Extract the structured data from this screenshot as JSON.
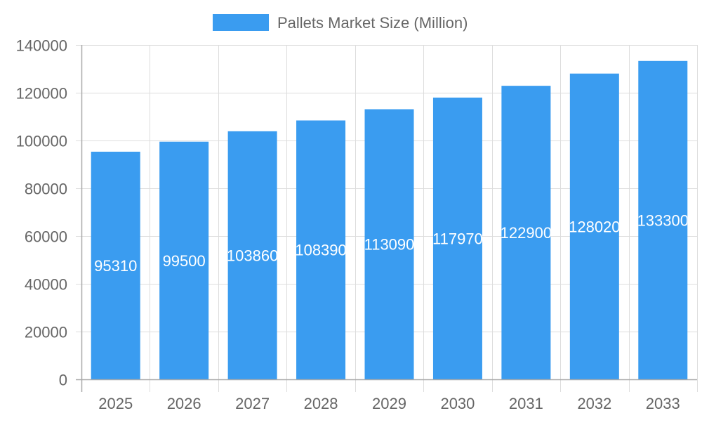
{
  "chart_data": {
    "type": "bar",
    "title": "",
    "xlabel": "",
    "ylabel": "",
    "categories": [
      "2025",
      "2026",
      "2027",
      "2028",
      "2029",
      "2030",
      "2031",
      "2032",
      "2033"
    ],
    "series": [
      {
        "name": "Pallets Market Size (Million)",
        "values": [
          95310,
          99500,
          103860,
          108390,
          113090,
          117970,
          122900,
          128020,
          133300
        ],
        "color": "#3a9cf0"
      }
    ],
    "ylim": [
      0,
      140000
    ],
    "yticks": [
      0,
      20000,
      40000,
      60000,
      80000,
      100000,
      120000,
      140000
    ],
    "grid": true,
    "legend_position": "top",
    "data_labels": true,
    "data_label_color": "#ffffff",
    "tick_color": "#666666",
    "grid_color": "#dddddd"
  }
}
